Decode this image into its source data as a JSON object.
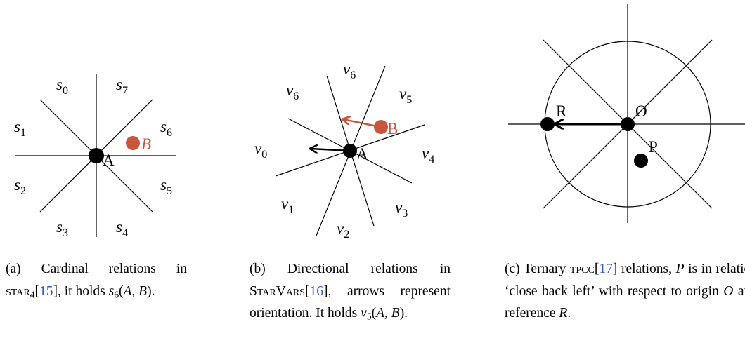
{
  "panel_a": {
    "labels": [
      {
        "base": "s",
        "sub": "0"
      },
      {
        "base": "s",
        "sub": "7"
      },
      {
        "base": "s",
        "sub": "1"
      },
      {
        "base": "s",
        "sub": "6"
      },
      {
        "base": "s",
        "sub": "2"
      },
      {
        "base": "s",
        "sub": "5"
      },
      {
        "base": "s",
        "sub": "3"
      },
      {
        "base": "s",
        "sub": "4"
      }
    ],
    "point_a": "A",
    "point_b": "B"
  },
  "panel_b": {
    "labels": [
      {
        "base": "v",
        "sub": "6"
      },
      {
        "base": "v",
        "sub": "6"
      },
      {
        "base": "v",
        "sub": "5"
      },
      {
        "base": "v",
        "sub": "0"
      },
      {
        "base": "v",
        "sub": "4"
      },
      {
        "base": "v",
        "sub": "1"
      },
      {
        "base": "v",
        "sub": "3"
      },
      {
        "base": "v",
        "sub": "2"
      }
    ],
    "point_a": "A",
    "point_b": "B"
  },
  "panel_c": {
    "points": [
      "R",
      "O",
      "P"
    ]
  },
  "captions": [
    [
      {
        "text": "(a) Cardinal relations in ",
        "style": "plain"
      },
      {
        "text": "star",
        "style": "smallcaps"
      },
      {
        "text": "4",
        "style": "sub"
      },
      {
        "text": "[",
        "style": "plain"
      },
      {
        "text": "15",
        "style": "cite"
      },
      {
        "text": "], it holds ",
        "style": "plain"
      },
      {
        "text": "s",
        "style": "math"
      },
      {
        "text": "6",
        "style": "sub"
      },
      {
        "text": "(",
        "style": "plain"
      },
      {
        "text": "A, B",
        "style": "math"
      },
      {
        "text": ").",
        "style": "plain"
      }
    ],
    [
      {
        "text": "(b) Directional relations in ",
        "style": "plain"
      },
      {
        "text": "StarVars",
        "style": "smallcaps"
      },
      {
        "text": "[",
        "style": "plain"
      },
      {
        "text": "16",
        "style": "cite"
      },
      {
        "text": "], arrows represent orientation. It holds ",
        "style": "plain"
      },
      {
        "text": "v",
        "style": "math"
      },
      {
        "text": "5",
        "style": "sub"
      },
      {
        "text": "(",
        "style": "plain"
      },
      {
        "text": "A, B",
        "style": "math"
      },
      {
        "text": ").",
        "style": "plain"
      }
    ],
    [
      {
        "text": "(c) Ternary ",
        "style": "plain"
      },
      {
        "text": "tpcc",
        "style": "smallcaps"
      },
      {
        "text": "[",
        "style": "plain"
      },
      {
        "text": "17",
        "style": "cite"
      },
      {
        "text": "] relations, ",
        "style": "plain"
      },
      {
        "text": "P",
        "style": "math"
      },
      {
        "text": " is in relation ‘close back left’ with respect to origin ",
        "style": "plain"
      },
      {
        "text": "O",
        "style": "math"
      },
      {
        "text": " and reference ",
        "style": "plain"
      },
      {
        "text": "R",
        "style": "math"
      },
      {
        "text": ".",
        "style": "plain"
      }
    ]
  ]
}
